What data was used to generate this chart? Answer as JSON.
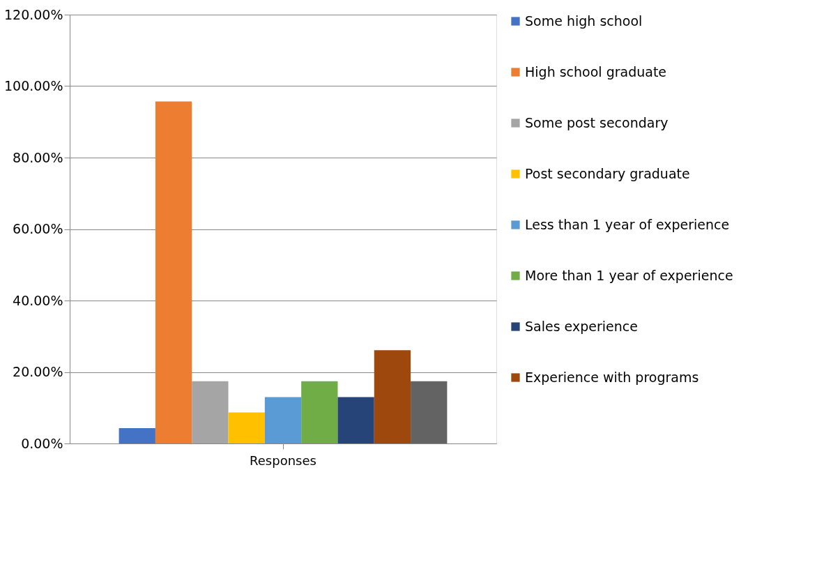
{
  "chart_data": {
    "type": "bar",
    "categories": [
      "Responses"
    ],
    "series": [
      {
        "name": "Some high school",
        "color": "#4472c4",
        "values": [
          4.3
        ]
      },
      {
        "name": "High school graduate",
        "color": "#ed7d31",
        "values": [
          95.7
        ]
      },
      {
        "name": "Some post secondary",
        "color": "#a5a5a5",
        "values": [
          17.4
        ]
      },
      {
        "name": "Post secondary graduate",
        "color": "#ffc000",
        "values": [
          8.7
        ]
      },
      {
        "name": "Less than 1 year of experience",
        "color": "#5b9bd5",
        "values": [
          13.0
        ]
      },
      {
        "name": "More than 1 year of experience",
        "color": "#70ad47",
        "values": [
          17.4
        ]
      },
      {
        "name": "Sales experience",
        "color": "#264478",
        "values": [
          13.0
        ]
      },
      {
        "name": "Experience with programs",
        "color": "#9e480e",
        "values": [
          26.1
        ]
      },
      {
        "color": "#636363",
        "values": [
          17.4
        ]
      }
    ],
    "ylim": [
      0,
      120
    ],
    "yticks": [
      {
        "value": 0,
        "label": "0.00%"
      },
      {
        "value": 20,
        "label": "20.00%"
      },
      {
        "value": 40,
        "label": "40.00%"
      },
      {
        "value": 60,
        "label": "60.00%"
      },
      {
        "value": 80,
        "label": "80.00%"
      },
      {
        "value": 100,
        "label": "100.00%"
      },
      {
        "value": 120,
        "label": "120.00%"
      }
    ],
    "grid": "y",
    "legend": "right"
  }
}
